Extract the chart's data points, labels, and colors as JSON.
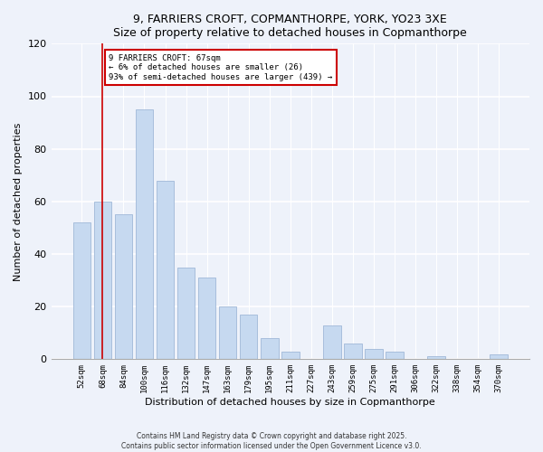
{
  "title": "9, FARRIERS CROFT, COPMANTHORPE, YORK, YO23 3XE",
  "subtitle": "Size of property relative to detached houses in Copmanthorpe",
  "xlabel": "Distribution of detached houses by size in Copmanthorpe",
  "ylabel": "Number of detached properties",
  "bar_labels": [
    "52sqm",
    "68sqm",
    "84sqm",
    "100sqm",
    "116sqm",
    "132sqm",
    "147sqm",
    "163sqm",
    "179sqm",
    "195sqm",
    "211sqm",
    "227sqm",
    "243sqm",
    "259sqm",
    "275sqm",
    "291sqm",
    "306sqm",
    "322sqm",
    "338sqm",
    "354sqm",
    "370sqm"
  ],
  "bar_values": [
    52,
    60,
    55,
    95,
    68,
    35,
    31,
    20,
    17,
    8,
    3,
    0,
    13,
    6,
    4,
    3,
    0,
    1,
    0,
    0,
    2
  ],
  "bar_color": "#c6d9f0",
  "bar_edge_color": "#a0b8d8",
  "vline_x": 1,
  "marker_label": "9 FARRIERS CROFT: 67sqm",
  "annotation_line1": "← 6% of detached houses are smaller (26)",
  "annotation_line2": "93% of semi-detached houses are larger (439) →",
  "vline_color": "#cc0000",
  "ylim": [
    0,
    120
  ],
  "yticks": [
    0,
    20,
    40,
    60,
    80,
    100,
    120
  ],
  "footer1": "Contains HM Land Registry data © Crown copyright and database right 2025.",
  "footer2": "Contains public sector information licensed under the Open Government Licence v3.0.",
  "bg_color": "#eef2fa",
  "annotation_box_color": "#ffffff",
  "annotation_box_edge": "#cc0000"
}
